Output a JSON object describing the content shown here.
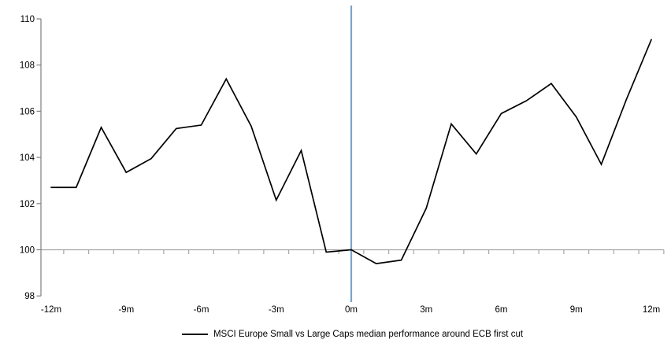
{
  "chart_data": {
    "type": "line",
    "title": "",
    "categories": [
      "-12m",
      "-11m",
      "-10m",
      "-9m",
      "-8m",
      "-7m",
      "-6m",
      "-5m",
      "-4m",
      "-3m",
      "-2m",
      "-1m",
      "0m",
      "1m",
      "2m",
      "3m",
      "4m",
      "5m",
      "6m",
      "7m",
      "8m",
      "9m",
      "10m",
      "11m",
      "12m"
    ],
    "series": [
      {
        "name": "MSCI Europe Small vs Large Caps median performance around ECB first cut",
        "color": "#000000",
        "values": [
          102.7,
          102.7,
          105.3,
          103.35,
          103.95,
          105.25,
          105.4,
          107.4,
          105.35,
          102.15,
          104.3,
          99.9,
          100.0,
          99.4,
          99.55,
          101.8,
          105.45,
          104.15,
          105.9,
          106.45,
          107.2,
          105.75,
          103.7,
          106.5,
          109.1
        ]
      }
    ],
    "x_axis": {
      "tick_labels": [
        "-12m",
        "-9m",
        "-6m",
        "-3m",
        "0m",
        "3m",
        "6m",
        "9m",
        "12m"
      ]
    },
    "y_axis": {
      "tick_labels": [
        "98",
        "100",
        "102",
        "104",
        "106",
        "108",
        "110"
      ],
      "min": 98,
      "max": 110
    },
    "event_line": {
      "at": "0m",
      "color": "#7AA4C9"
    },
    "gridlines": {
      "horizontal_at": 100,
      "color": "#A6A6A6"
    },
    "axis_color": "#808080",
    "legend_position": "bottom",
    "grid": "single horizontal line at 100 only"
  },
  "legend": {
    "label": "MSCI Europe Small vs Large Caps median performance around ECB first cut",
    "swatch_color": "#000000"
  }
}
